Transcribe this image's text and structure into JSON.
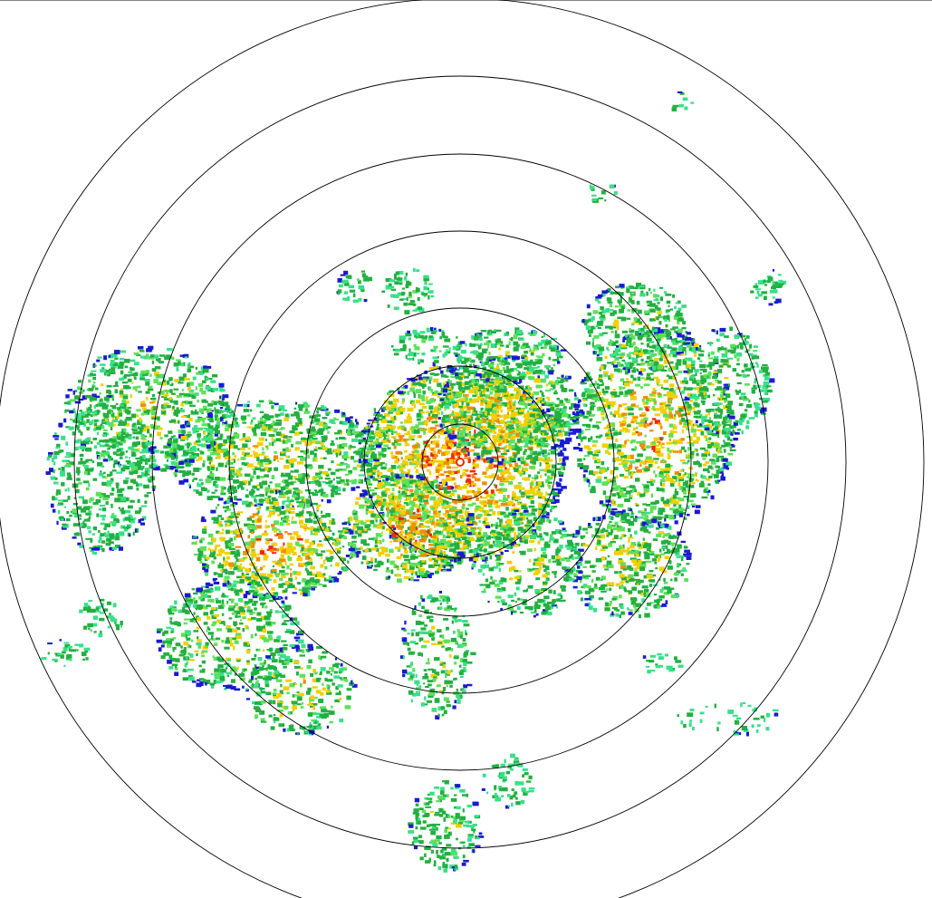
{
  "radar": {
    "palette": {
      "weak": "#1a1ad0",
      "light": "#38e08a",
      "moderate": "#22b040",
      "bright": "#5ee05a",
      "heavy": "#f0d000",
      "very_heavy": "#f08c00",
      "intense": "#f02810"
    },
    "range_ring_color": "#000000",
    "range_ring_count": 7
  }
}
